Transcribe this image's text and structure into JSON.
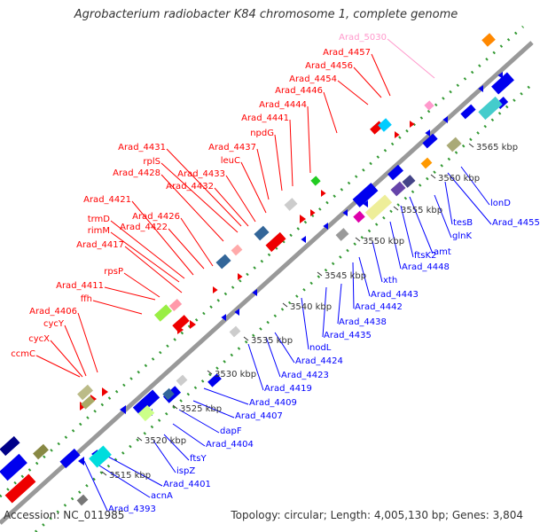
{
  "title": "Agrobacterium radiobacter K84 chromosome 1, complete genome",
  "footer": {
    "accession": "Accession: NC_011985",
    "topology": "Topology: circular; Length: 4,005,130 bp; Genes: 3,804"
  },
  "colors": {
    "forward_genes": "#ff0000",
    "reverse_genes": "#0000ff",
    "highlight_gene": "#ff99cc",
    "backbone": "#999999",
    "dots": "#339933",
    "text": "#333333"
  },
  "ticks": [
    "3515 kbp",
    "3520 kbp",
    "3525 kbp",
    "3530 kbp",
    "3535 kbp",
    "3540 kbp",
    "3545 kbp",
    "3550 kbp",
    "3555 kbp",
    "3560 kbp",
    "3565 kbp"
  ],
  "forward_labels": [
    "ccmC",
    "cycX",
    "cycY",
    "Arad_4406",
    "ffh",
    "Arad_4411",
    "rpsP",
    "Arad_4417",
    "rimM",
    "trmD",
    "Arad_4421",
    "Arad_4422",
    "Arad_4426",
    "Arad_4428",
    "rplS",
    "Arad_4431",
    "Arad_4432",
    "Arad_4433",
    "leuC",
    "Arad_4437",
    "npdG",
    "Arad_4441",
    "Arad_4444",
    "Arad_4446",
    "Arad_4454",
    "Arad_4456",
    "Arad_4457",
    "Arad_5030"
  ],
  "reverse_labels": [
    "Arad_4393",
    "acnA",
    "Arad_4401",
    "ispZ",
    "ftsY",
    "Arad_4404",
    "dapF",
    "Arad_4407",
    "Arad_4409",
    "Arad_4419",
    "Arad_4423",
    "Arad_4424",
    "nodL",
    "Arad_4435",
    "Arad_4438",
    "Arad_4442",
    "Arad_4443",
    "xth",
    "Arad_4448",
    "ftsK2",
    "amt",
    "glnK",
    "tesB",
    "Arad_4455",
    "lonD"
  ]
}
